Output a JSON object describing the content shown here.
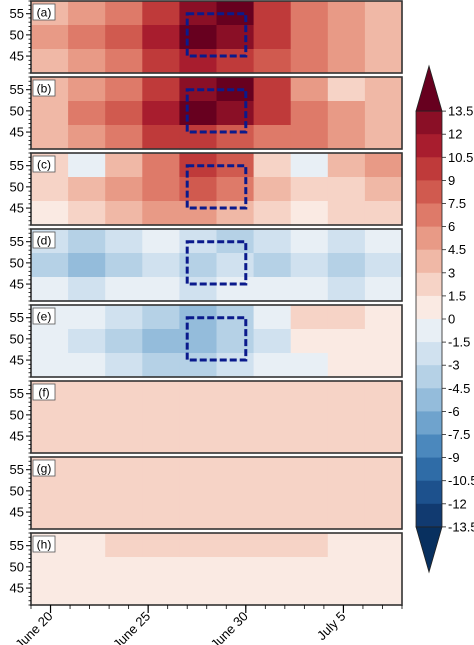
{
  "chart_data": {
    "type": "heatmap",
    "title": "",
    "xlabel": "",
    "ylabel": "",
    "x_ticks": [
      "June 20",
      "June 25",
      "June 30",
      "July 5"
    ],
    "y_ticks": [
      "55",
      "50",
      "45"
    ],
    "xlim": [
      "June 19",
      "July 8"
    ],
    "ylim": [
      41,
      58
    ],
    "box": {
      "x0": "June 27",
      "x1": "June 30",
      "y0": 45,
      "y1": 55
    },
    "panels": [
      {
        "label": "(a)",
        "values": [
          [
            3,
            4.5,
            6,
            9,
            12,
            13.5,
            9,
            6,
            4.5,
            3
          ],
          [
            4.5,
            6,
            7.5,
            10.5,
            13.5,
            12,
            9,
            6,
            4.5,
            3
          ],
          [
            3,
            4.5,
            6,
            9,
            10.5,
            9,
            7.5,
            6,
            4.5,
            3
          ]
        ]
      },
      {
        "label": "(b)",
        "values": [
          [
            3,
            4.5,
            6,
            9,
            12,
            13.5,
            9,
            4.5,
            1.5,
            3
          ],
          [
            3,
            6,
            7.5,
            10.5,
            13.5,
            12,
            9,
            6,
            4.5,
            3
          ],
          [
            3,
            4.5,
            6,
            9,
            9,
            7.5,
            6,
            6,
            4.5,
            3
          ]
        ]
      },
      {
        "label": "(c)",
        "values": [
          [
            1.5,
            -1.5,
            3,
            6,
            9,
            7.5,
            1.5,
            -1.5,
            3,
            4.5
          ],
          [
            1.5,
            3,
            4.5,
            6,
            7.5,
            6,
            3,
            1.5,
            1.5,
            3
          ],
          [
            0,
            1.5,
            3,
            4.5,
            4.5,
            3,
            1.5,
            0,
            1.5,
            1.5
          ]
        ]
      },
      {
        "label": "(d)",
        "values": [
          [
            -3,
            -4.5,
            -3,
            -1.5,
            -3,
            -4.5,
            -3,
            -1.5,
            -3,
            -1.5
          ],
          [
            -4.5,
            -6,
            -4.5,
            -3,
            -4.5,
            -3,
            -4.5,
            -3,
            -4.5,
            -3
          ],
          [
            -1.5,
            -3,
            -1.5,
            -1.5,
            -3,
            -1.5,
            -1.5,
            -1.5,
            -3,
            -1.5
          ]
        ]
      },
      {
        "label": "(e)",
        "values": [
          [
            -1.5,
            -1.5,
            -3,
            -4.5,
            -6,
            -4.5,
            -1.5,
            1.5,
            1.5,
            0
          ],
          [
            -1.5,
            -3,
            -4.5,
            -6,
            -6,
            -4.5,
            -3,
            0,
            0,
            0
          ],
          [
            -1.5,
            -1.5,
            -3,
            -4.5,
            -4.5,
            -3,
            -1.5,
            -1.5,
            0,
            0
          ]
        ]
      },
      {
        "label": "(f)",
        "values": [
          [
            1.5,
            1.5,
            1.5,
            1.5,
            1.5,
            1.5,
            1.5,
            1.5,
            1.5,
            1.5
          ],
          [
            1.5,
            1.5,
            1.5,
            1.5,
            1.5,
            1.5,
            1.5,
            1.5,
            1.5,
            1.5
          ],
          [
            1.5,
            1.5,
            1.5,
            1.5,
            1.5,
            1.5,
            1.5,
            1.5,
            1.5,
            1.5
          ]
        ]
      },
      {
        "label": "(g)",
        "values": [
          [
            1.5,
            1.5,
            1.5,
            1.5,
            1.5,
            1.5,
            1.5,
            1.5,
            1.5,
            1.5
          ],
          [
            1.5,
            1.5,
            1.5,
            1.5,
            1.5,
            1.5,
            1.5,
            1.5,
            1.5,
            1.5
          ],
          [
            1.5,
            1.5,
            1.5,
            1.5,
            1.5,
            1.5,
            1.5,
            1.5,
            1.5,
            1.5
          ]
        ]
      },
      {
        "label": "(h)",
        "values": [
          [
            0,
            0,
            1.5,
            1.5,
            1.5,
            1.5,
            1.5,
            1.5,
            0,
            0
          ],
          [
            0,
            0,
            0,
            0,
            0,
            0,
            0,
            0,
            0,
            0
          ],
          [
            0,
            0,
            0,
            0,
            0,
            0,
            0,
            0,
            0,
            0
          ]
        ]
      }
    ],
    "colorbar": {
      "labels": [
        "13.5",
        "12",
        "10.5",
        "9",
        "7.5",
        "6",
        "4.5",
        "3",
        "1.5",
        "0",
        "-1.5",
        "-3",
        "-4.5",
        "-6",
        "-7.5",
        "-9",
        "-10.5",
        "-12",
        "-13.5"
      ],
      "colors": [
        "#67001f",
        "#8a0f26",
        "#a81d2e",
        "#bf3a3a",
        "#d05a4f",
        "#de7a69",
        "#e89a86",
        "#f0b8a6",
        "#f6d3c6",
        "#faeae3",
        "#e8eff5",
        "#d0e1ef",
        "#b5d1e6",
        "#94bcdb",
        "#6fa3cd",
        "#4b88bd",
        "#2f6ca7",
        "#1d518d",
        "#113a70",
        "#08305f"
      ]
    }
  }
}
